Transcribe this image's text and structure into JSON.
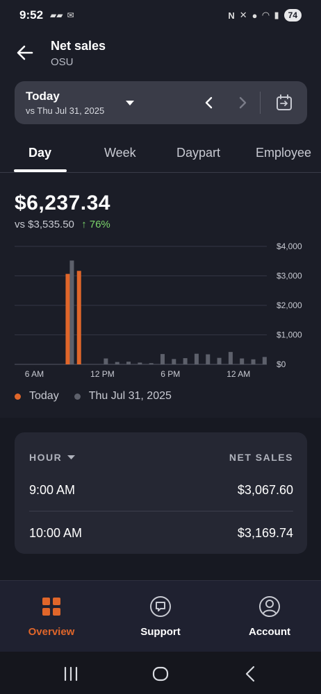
{
  "status_bar": {
    "time": "9:52",
    "battery": "74"
  },
  "header": {
    "title": "Net sales",
    "subtitle": "OSU"
  },
  "date_selector": {
    "label": "Today",
    "compare_label": "vs Thu Jul 31, 2025"
  },
  "tabs": [
    {
      "label": "Day",
      "active": true
    },
    {
      "label": "Week",
      "active": false
    },
    {
      "label": "Daypart",
      "active": false
    },
    {
      "label": "Employee",
      "active": false
    }
  ],
  "summary": {
    "total": "$6,237.34",
    "compare_text": "vs $3,535.50",
    "change_text": "↑ 76%"
  },
  "chart_data": {
    "type": "bar",
    "x_tick_labels": [
      "6 AM",
      "12 PM",
      "6 PM",
      "12 AM"
    ],
    "y_tick_labels": [
      "$4,000",
      "$3,000",
      "$2,000",
      "$1,000",
      "$0"
    ],
    "ylim": [
      0,
      4000
    ],
    "legend_position": "bottom-left",
    "grid": true,
    "colors": {
      "Today": "#e0662a",
      "Thu Jul 31, 2025": "#5d606b"
    },
    "categories": [
      "5 AM",
      "6 AM",
      "7 AM",
      "8 AM",
      "9 AM",
      "10 AM",
      "11 AM",
      "12 PM",
      "1 PM",
      "2 PM",
      "3 PM",
      "4 PM",
      "5 PM",
      "6 PM",
      "7 PM",
      "8 PM",
      "9 PM",
      "10 PM",
      "11 PM",
      "12 AM",
      "1 AM",
      "2 AM"
    ],
    "series": [
      {
        "name": "Today",
        "values": [
          0,
          0,
          0,
          0,
          3067.6,
          3169.74,
          0,
          0,
          0,
          0,
          0,
          0,
          0,
          0,
          0,
          0,
          0,
          0,
          0,
          0,
          0,
          0
        ]
      },
      {
        "name": "Thu Jul 31, 2025",
        "values": [
          0,
          0,
          0,
          0,
          3520,
          0,
          0,
          200,
          80,
          90,
          60,
          40,
          350,
          180,
          210,
          360,
          340,
          220,
          420,
          200,
          170,
          250
        ]
      }
    ]
  },
  "legend": [
    {
      "name": "Today",
      "color": "#e0662a"
    },
    {
      "name": "Thu Jul 31, 2025",
      "color": "#5d606b"
    }
  ],
  "table": {
    "header_hour": "HOUR",
    "header_sales": "NET SALES",
    "rows": [
      {
        "hour": "9:00 AM",
        "sales": "$3,067.60"
      },
      {
        "hour": "10:00 AM",
        "sales": "$3,169.74"
      }
    ]
  },
  "bottom_nav": [
    {
      "label": "Overview",
      "icon": "grid-icon",
      "active": true,
      "color": "#e0662a"
    },
    {
      "label": "Support",
      "icon": "chat-icon",
      "active": false
    },
    {
      "label": "Account",
      "icon": "user-icon",
      "active": false
    }
  ]
}
